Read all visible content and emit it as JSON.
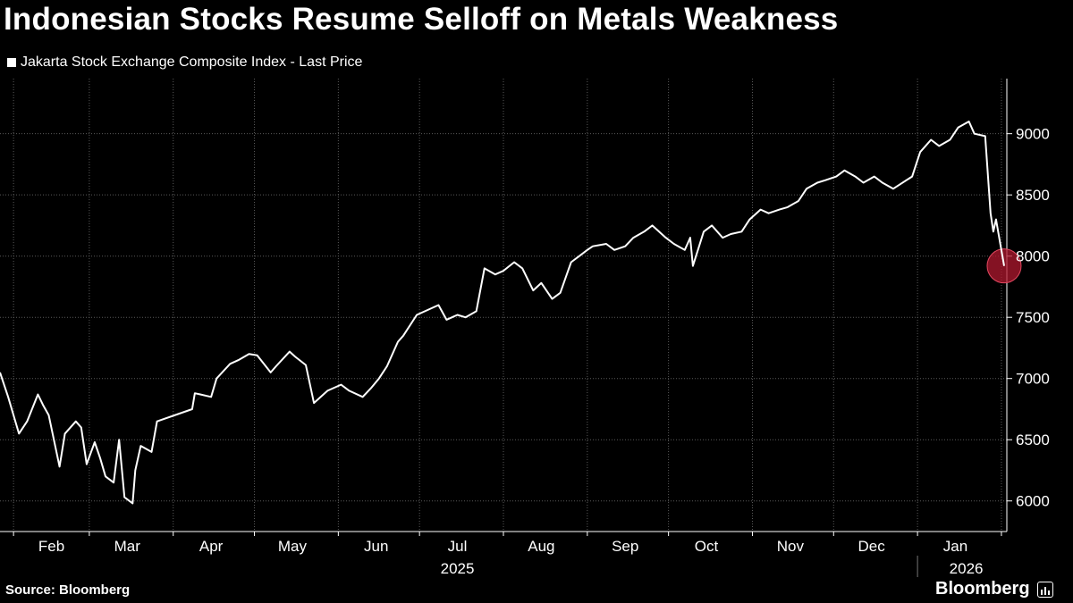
{
  "chart_data": {
    "type": "line",
    "title": "Indonesian Stocks Resume Selloff on Metals Weakness",
    "source": "Source: Bloomberg",
    "brand": "Bloomberg",
    "legend_position": "top-left",
    "grid": true,
    "colors": {
      "background": "#000000",
      "line": "#ffffff",
      "highlight": "#b0182f",
      "grid": "#5a5a5a"
    },
    "ylim": [
      5750,
      9450
    ],
    "y_axis_side": "right",
    "y_ticks": [
      6000,
      6500,
      7000,
      7500,
      8000,
      8500,
      9000
    ],
    "x_range": [
      "2025-01-27",
      "2026-02-03"
    ],
    "month_labels": [
      {
        "label": "Feb",
        "date": "2025-02-15"
      },
      {
        "label": "Mar",
        "date": "2025-03-15"
      },
      {
        "label": "Apr",
        "date": "2025-04-15"
      },
      {
        "label": "May",
        "date": "2025-05-15"
      },
      {
        "label": "Jun",
        "date": "2025-06-15"
      },
      {
        "label": "Jul",
        "date": "2025-07-15"
      },
      {
        "label": "Aug",
        "date": "2025-08-15"
      },
      {
        "label": "Sep",
        "date": "2025-09-15"
      },
      {
        "label": "Oct",
        "date": "2025-10-15"
      },
      {
        "label": "Nov",
        "date": "2025-11-15"
      },
      {
        "label": "Dec",
        "date": "2025-12-15"
      },
      {
        "label": "Jan",
        "date": "2026-01-15"
      }
    ],
    "month_boundaries": [
      "2025-02-01",
      "2025-03-01",
      "2025-04-01",
      "2025-05-01",
      "2025-06-01",
      "2025-07-01",
      "2025-08-01",
      "2025-09-01",
      "2025-10-01",
      "2025-11-01",
      "2025-12-01",
      "2026-01-01",
      "2026-02-01"
    ],
    "year_labels": [
      {
        "label": "2025",
        "date": "2025-07-15"
      },
      {
        "label": "2026",
        "date": "2026-01-19"
      }
    ],
    "year_boundary": "2026-01-01",
    "highlight_point": {
      "x": "2026-02-02",
      "y": 7920
    },
    "series": [
      {
        "name": "Jakarta Stock Exchange Composite Index - Last Price",
        "x": [
          "2025-01-27",
          "2025-01-30",
          "2025-02-03",
          "2025-02-06",
          "2025-02-10",
          "2025-02-12",
          "2025-02-14",
          "2025-02-18",
          "2025-02-20",
          "2025-02-24",
          "2025-02-26",
          "2025-02-28",
          "2025-03-03",
          "2025-03-05",
          "2025-03-07",
          "2025-03-10",
          "2025-03-12",
          "2025-03-14",
          "2025-03-17",
          "2025-03-18",
          "2025-03-20",
          "2025-03-24",
          "2025-03-26",
          "2025-04-08",
          "2025-04-09",
          "2025-04-11",
          "2025-04-15",
          "2025-04-17",
          "2025-04-22",
          "2025-04-25",
          "2025-04-29",
          "2025-05-02",
          "2025-05-07",
          "2025-05-09",
          "2025-05-14",
          "2025-05-16",
          "2025-05-20",
          "2025-05-23",
          "2025-05-28",
          "2025-06-02",
          "2025-06-05",
          "2025-06-10",
          "2025-06-13",
          "2025-06-16",
          "2025-06-19",
          "2025-06-23",
          "2025-06-25",
          "2025-06-30",
          "2025-07-03",
          "2025-07-08",
          "2025-07-11",
          "2025-07-15",
          "2025-07-18",
          "2025-07-22",
          "2025-07-25",
          "2025-07-29",
          "2025-08-01",
          "2025-08-05",
          "2025-08-08",
          "2025-08-12",
          "2025-08-15",
          "2025-08-19",
          "2025-08-22",
          "2025-08-26",
          "2025-08-29",
          "2025-09-01",
          "2025-09-03",
          "2025-09-08",
          "2025-09-11",
          "2025-09-15",
          "2025-09-18",
          "2025-09-22",
          "2025-09-25",
          "2025-09-30",
          "2025-10-03",
          "2025-10-07",
          "2025-10-09",
          "2025-10-10",
          "2025-10-14",
          "2025-10-17",
          "2025-10-21",
          "2025-10-24",
          "2025-10-28",
          "2025-10-31",
          "2025-11-04",
          "2025-11-07",
          "2025-11-11",
          "2025-11-14",
          "2025-11-18",
          "2025-11-21",
          "2025-11-25",
          "2025-11-28",
          "2025-12-02",
          "2025-12-05",
          "2025-12-09",
          "2025-12-12",
          "2025-12-16",
          "2025-12-19",
          "2025-12-23",
          "2025-12-30",
          "2026-01-02",
          "2026-01-06",
          "2026-01-09",
          "2026-01-13",
          "2026-01-16",
          "2026-01-20",
          "2026-01-22",
          "2026-01-26",
          "2026-01-28",
          "2026-01-29",
          "2026-01-30",
          "2026-02-02"
        ],
        "values": [
          7050,
          6850,
          6550,
          6650,
          6870,
          6780,
          6700,
          6280,
          6550,
          6650,
          6600,
          6300,
          6480,
          6350,
          6200,
          6150,
          6500,
          6030,
          5980,
          6250,
          6450,
          6400,
          6650,
          6750,
          6880,
          6870,
          6850,
          7000,
          7120,
          7150,
          7200,
          7190,
          7050,
          7100,
          7220,
          7180,
          7110,
          6800,
          6900,
          6950,
          6900,
          6850,
          6920,
          7000,
          7100,
          7300,
          7350,
          7520,
          7550,
          7600,
          7480,
          7520,
          7500,
          7550,
          7900,
          7850,
          7880,
          7950,
          7900,
          7720,
          7780,
          7650,
          7700,
          7950,
          8000,
          8050,
          8080,
          8100,
          8050,
          8080,
          8150,
          8200,
          8250,
          8150,
          8100,
          8050,
          8150,
          7920,
          8200,
          8250,
          8150,
          8180,
          8200,
          8300,
          8380,
          8350,
          8380,
          8400,
          8450,
          8550,
          8600,
          8620,
          8650,
          8700,
          8650,
          8600,
          8650,
          8600,
          8550,
          8650,
          8850,
          8950,
          8900,
          8950,
          9050,
          9100,
          9000,
          8980,
          8350,
          8200,
          8300,
          7920
        ]
      }
    ]
  }
}
